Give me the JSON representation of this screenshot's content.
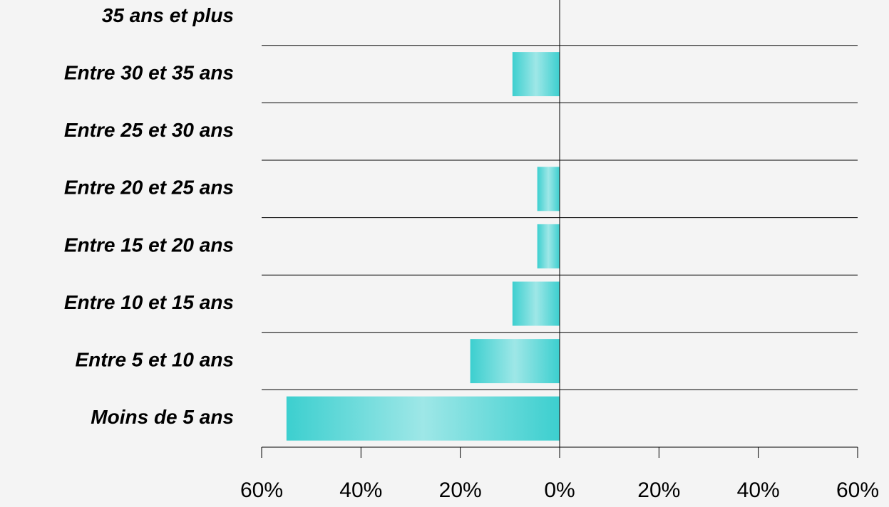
{
  "chart_data": {
    "type": "barh",
    "categories": [
      "Moins de 5 ans",
      "Entre 5 et 10 ans",
      "Entre 10 et 15 ans",
      "Entre 15 et 20 ans",
      "Entre 20 et 25 ans",
      "Entre 25 et 30 ans",
      "Entre 30 et 35 ans",
      "35 ans et plus"
    ],
    "values": [
      -55,
      -18,
      -9.5,
      -4.5,
      -4.5,
      0,
      -9.5,
      0
    ],
    "color": "#3ccfcf",
    "xlim": [
      -60,
      60
    ],
    "xticks": [
      {
        "value": -60,
        "label": "60%"
      },
      {
        "value": -40,
        "label": "40%"
      },
      {
        "value": -20,
        "label": "20%"
      },
      {
        "value": 0,
        "label": "0%"
      },
      {
        "value": 20,
        "label": "20%"
      },
      {
        "value": 40,
        "label": "40%"
      },
      {
        "value": 60,
        "label": "60%"
      }
    ]
  }
}
